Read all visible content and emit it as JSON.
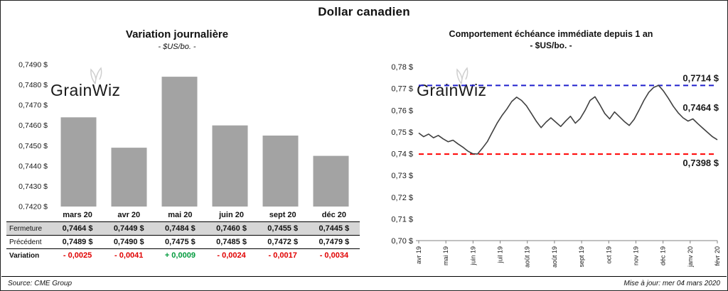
{
  "title": "Dollar canadien",
  "watermark": "GrainWiz",
  "footer": {
    "source": "Source: CME Group",
    "updated": "Mise à jour: mer 04 mars 2020"
  },
  "table": {
    "header": [
      "",
      "mars 20",
      "avr 20",
      "mai 20",
      "juin 20",
      "sept 20",
      "déc 20"
    ],
    "rows": [
      {
        "style": "fermeture",
        "label": "Fermeture",
        "values": [
          "0,7464  $",
          "0,7449  $",
          "0,7484  $",
          "0,7460  $",
          "0,7455  $",
          "0,7445  $"
        ]
      },
      {
        "style": "precedent",
        "label": "Précédent",
        "values": [
          "0,7489  $",
          "0,7490  $",
          "0,7475  $",
          "0,7485  $",
          "0,7472  $",
          "0,7479  $"
        ]
      },
      {
        "style": "variation",
        "label": "Variation",
        "values": [
          "- 0,0025",
          "- 0,0041",
          "+ 0,0009",
          "- 0,0024",
          "- 0,0017",
          "- 0,0034"
        ],
        "colors": [
          "neg",
          "neg",
          "pos",
          "neg",
          "neg",
          "neg"
        ]
      }
    ]
  },
  "chart_data": [
    {
      "type": "bar",
      "title": "Variation  journalière",
      "subtitle": "- $US/bo. -",
      "categories": [
        "mars 20",
        "avr 20",
        "mai 20",
        "juin 20",
        "sept 20",
        "déc 20"
      ],
      "values": [
        0.7464,
        0.7449,
        0.7484,
        0.746,
        0.7455,
        0.7445
      ],
      "ylim": [
        0.742,
        0.749
      ],
      "ytick_step": 0.001,
      "y_format": "fr4",
      "grid": false,
      "bar_color": "#a3a3a3"
    },
    {
      "type": "line",
      "title": "Comportement échéance immédiate depuis 1 an",
      "subtitle": "- $US/bo. -",
      "x_labels": [
        "avr 19",
        "mai 19",
        "juin 19",
        "juil 19",
        "août 19",
        "août 19",
        "sept 19",
        "oct 19",
        "nov 19",
        "déc 19",
        "janv 20",
        "févr 20"
      ],
      "values": [
        0.7495,
        0.7478,
        0.749,
        0.7473,
        0.7484,
        0.7468,
        0.7455,
        0.7462,
        0.7445,
        0.743,
        0.7412,
        0.74,
        0.7398,
        0.7425,
        0.7455,
        0.7498,
        0.754,
        0.7575,
        0.7605,
        0.764,
        0.766,
        0.7645,
        0.762,
        0.7585,
        0.755,
        0.752,
        0.7545,
        0.7565,
        0.7545,
        0.7525,
        0.755,
        0.7572,
        0.754,
        0.7562,
        0.76,
        0.7645,
        0.7662,
        0.7625,
        0.7585,
        0.756,
        0.7592,
        0.757,
        0.7548,
        0.753,
        0.7558,
        0.76,
        0.7645,
        0.7682,
        0.7705,
        0.7714,
        0.7688,
        0.7655,
        0.7618,
        0.7588,
        0.7565,
        0.755,
        0.756,
        0.7538,
        0.7518,
        0.7498,
        0.7478,
        0.7464
      ],
      "ylim": [
        0.7,
        0.78
      ],
      "ytick_step": 0.01,
      "y_format": "fr2",
      "grid": false,
      "line_color": "#404040",
      "annotations": {
        "high": {
          "label": "0,7714 $",
          "value": 0.7714,
          "color": "#2020cc",
          "style": "dashed"
        },
        "low": {
          "label": "0,7398 $",
          "value": 0.7398,
          "color": "#ff0000",
          "style": "dashed"
        },
        "last": {
          "label": "0,7464 $",
          "value": 0.7464,
          "color": "#000000",
          "anchor": 0.761
        }
      }
    }
  ]
}
